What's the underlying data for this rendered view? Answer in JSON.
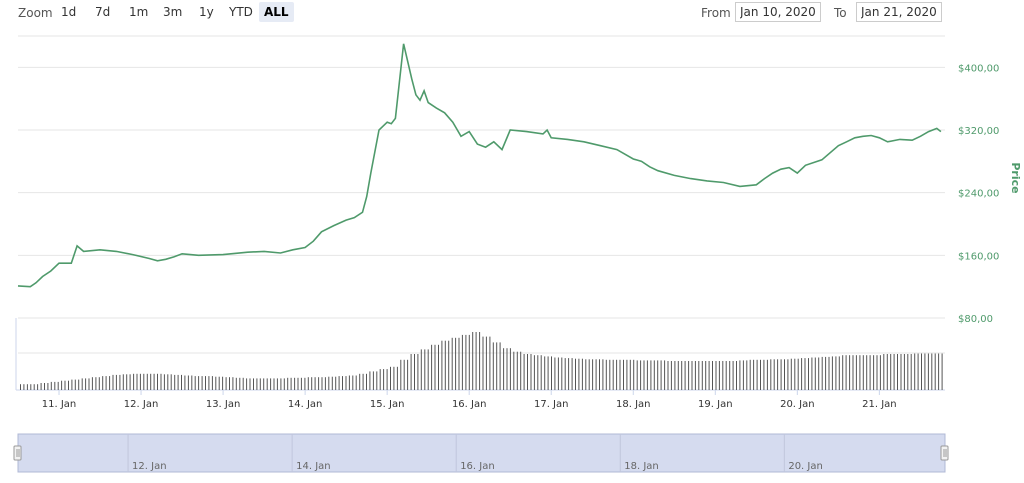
{
  "toolbar": {
    "zoom_label": "Zoom",
    "zoom_buttons": [
      "1d",
      "7d",
      "1m",
      "3m",
      "1y",
      "YTD",
      "ALL"
    ],
    "active_zoom": "ALL",
    "from_label": "From",
    "from_value": "Jan 10, 2020",
    "to_label": "To",
    "to_value": "Jan 21, 2020"
  },
  "colors": {
    "price_line": "#4f9a6b",
    "volume_bar": "#555555",
    "navigator_fill": "#d5dbef",
    "navigator_border": "#b0b8d6"
  },
  "chart_data": {
    "type": "line",
    "ylabel": "Price",
    "y_ticks": [
      "$80,00",
      "$160,00",
      "$240,00",
      "$320,00",
      "$400,00"
    ],
    "y_tick_values": [
      80,
      160,
      240,
      320,
      400
    ],
    "ylim": [
      80,
      440
    ],
    "x_ticks": [
      "11. Jan",
      "12. Jan",
      "13. Jan",
      "14. Jan",
      "15. Jan",
      "16. Jan",
      "17. Jan",
      "18. Jan",
      "19. Jan",
      "20. Jan",
      "21. Jan"
    ],
    "x_tick_values": [
      0.5,
      1.5,
      2.5,
      3.5,
      4.5,
      5.5,
      6.5,
      7.5,
      8.5,
      9.5,
      10.5
    ],
    "xlim": [
      0,
      11.3
    ],
    "price_series": {
      "x": [
        0,
        0.15,
        0.22,
        0.3,
        0.4,
        0.5,
        0.65,
        0.72,
        0.8,
        1.0,
        1.2,
        1.4,
        1.6,
        1.7,
        1.8,
        1.9,
        2.0,
        2.2,
        2.5,
        2.8,
        3.0,
        3.2,
        3.35,
        3.5,
        3.6,
        3.7,
        3.85,
        4.0,
        4.1,
        4.2,
        4.25,
        4.3,
        4.4,
        4.5,
        4.55,
        4.6,
        4.7,
        4.8,
        4.85,
        4.9,
        4.95,
        5.0,
        5.1,
        5.2,
        5.3,
        5.4,
        5.5,
        5.6,
        5.7,
        5.8,
        5.9,
        6.0,
        6.2,
        6.4,
        6.45,
        6.5,
        6.7,
        6.9,
        7.1,
        7.3,
        7.5,
        7.6,
        7.7,
        7.8,
        8.0,
        8.2,
        8.4,
        8.6,
        8.8,
        9.0,
        9.1,
        9.2,
        9.3,
        9.4,
        9.5,
        9.6,
        9.8,
        10.0,
        10.1,
        10.2,
        10.3,
        10.4,
        10.5,
        10.6,
        10.75,
        10.9,
        11.0,
        11.1,
        11.15,
        11.2,
        11.25
      ],
      "y": [
        121,
        120,
        125,
        133,
        140,
        150,
        150,
        172,
        165,
        167,
        165,
        161,
        156,
        153,
        155,
        158,
        162,
        160,
        161,
        164,
        165,
        163,
        167,
        170,
        178,
        190,
        198,
        205,
        208,
        215,
        235,
        265,
        320,
        330,
        328,
        335,
        430,
        385,
        365,
        358,
        370,
        355,
        348,
        342,
        330,
        312,
        318,
        302,
        298,
        305,
        295,
        320,
        318,
        315,
        320,
        310,
        308,
        305,
        300,
        295,
        283,
        280,
        273,
        268,
        262,
        258,
        255,
        253,
        248,
        250,
        258,
        265,
        270,
        272,
        265,
        275,
        282,
        300,
        305,
        310,
        312,
        313,
        310,
        305,
        308,
        307,
        312,
        318,
        320,
        322,
        318
      ],
      "note": ""
    },
    "volume_series": {
      "relative_heights": [
        0.1,
        0.1,
        0.12,
        0.14,
        0.16,
        0.18,
        0.2,
        0.22,
        0.24,
        0.26,
        0.27,
        0.28,
        0.28,
        0.28,
        0.27,
        0.26,
        0.25,
        0.24,
        0.24,
        0.23,
        0.22,
        0.21,
        0.2,
        0.2,
        0.2,
        0.2,
        0.21,
        0.21,
        0.22,
        0.22,
        0.23,
        0.24,
        0.25,
        0.28,
        0.32,
        0.36,
        0.4,
        0.52,
        0.62,
        0.7,
        0.78,
        0.85,
        0.9,
        0.95,
        1.0,
        0.92,
        0.82,
        0.72,
        0.66,
        0.62,
        0.6,
        0.58,
        0.56,
        0.55,
        0.54,
        0.53,
        0.53,
        0.52,
        0.52,
        0.52,
        0.51,
        0.51,
        0.51,
        0.5,
        0.5,
        0.5,
        0.5,
        0.5,
        0.5,
        0.5,
        0.51,
        0.52,
        0.52,
        0.53,
        0.53,
        0.54,
        0.55,
        0.56,
        0.57,
        0.58,
        0.6,
        0.6,
        0.6,
        0.6,
        0.62,
        0.62,
        0.62,
        0.63,
        0.63,
        0.63
      ]
    }
  },
  "navigator": {
    "ticks": [
      "12. Jan",
      "14. Jan",
      "16. Jan",
      "18. Jan",
      "20. Jan"
    ],
    "tick_values": [
      1.5,
      3.5,
      5.5,
      7.5,
      9.5
    ]
  }
}
